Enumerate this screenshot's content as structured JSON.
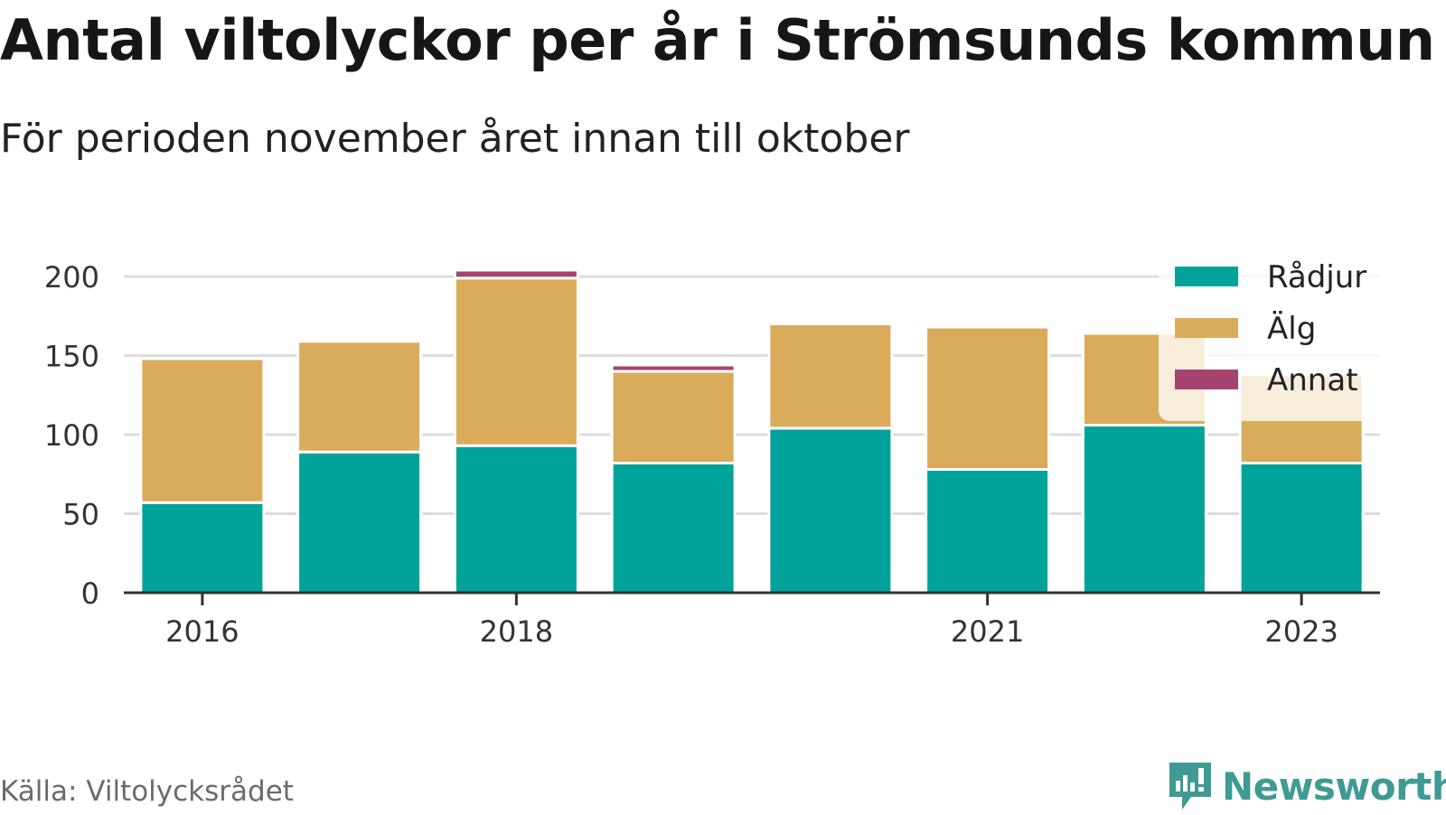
{
  "chart_data": {
    "type": "bar",
    "stacked": true,
    "title": "Antal viltolyckor per år i Strömsunds kommun",
    "subtitle": "För perioden november året innan till oktober",
    "categories": [
      "2016",
      "2017",
      "2018",
      "2019",
      "2020",
      "2021",
      "2022",
      "2023"
    ],
    "x_tick_labels": [
      "2016",
      "2018",
      "2021",
      "2023"
    ],
    "y_ticks": [
      0,
      50,
      100,
      150,
      200
    ],
    "ylim": [
      0,
      210
    ],
    "grid": true,
    "legend_position": "top-right",
    "series": [
      {
        "name": "Rådjur",
        "color": "#00a39a",
        "values": [
          57,
          89,
          93,
          82,
          104,
          78,
          106,
          82
        ]
      },
      {
        "name": "Älg",
        "color": "#daab5a",
        "values": [
          91,
          70,
          106,
          58,
          66,
          90,
          58,
          56
        ]
      },
      {
        "name": "Annat",
        "color": "#a6426f",
        "values": [
          0,
          0,
          5,
          4,
          0,
          0,
          0,
          0
        ]
      }
    ]
  },
  "source_label": "Källa: Viltolycksrådet",
  "brand": {
    "name": "Newsworthy",
    "color": "#3e9a92",
    "icon": "newsworthy-logo-icon"
  }
}
